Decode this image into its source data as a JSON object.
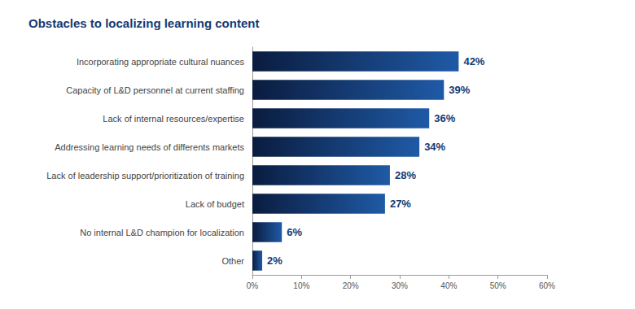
{
  "chart_data": {
    "type": "bar",
    "title": "Obstacles to localizing learning content",
    "orientation": "horizontal",
    "categories": [
      "Incorporating appropriate cultural nuances",
      "Capacity of L&D personnel at current staffing",
      "Lack of internal resources/expertise",
      "Addressing learning needs of differents markets",
      "Lack of leadership support/prioritization of training",
      "Lack of budget",
      "No internal L&D champion for localization",
      "Other"
    ],
    "values": [
      42,
      39,
      36,
      34,
      28,
      27,
      6,
      2
    ],
    "value_labels": [
      "42%",
      "39%",
      "36%",
      "34%",
      "28%",
      "27%",
      "6%",
      "2%"
    ],
    "color": "#1f5aa6",
    "xlim": [
      0,
      60
    ],
    "xticks": [
      {
        "value": 0,
        "label": "0%"
      },
      {
        "value": 10,
        "label": "10%"
      },
      {
        "value": 20,
        "label": "20%"
      },
      {
        "value": 30,
        "label": "30%"
      },
      {
        "value": 40,
        "label": "40%"
      },
      {
        "value": 50,
        "label": "50%"
      },
      {
        "value": 60,
        "label": "60%"
      }
    ],
    "grid": false,
    "data_labels": true
  }
}
